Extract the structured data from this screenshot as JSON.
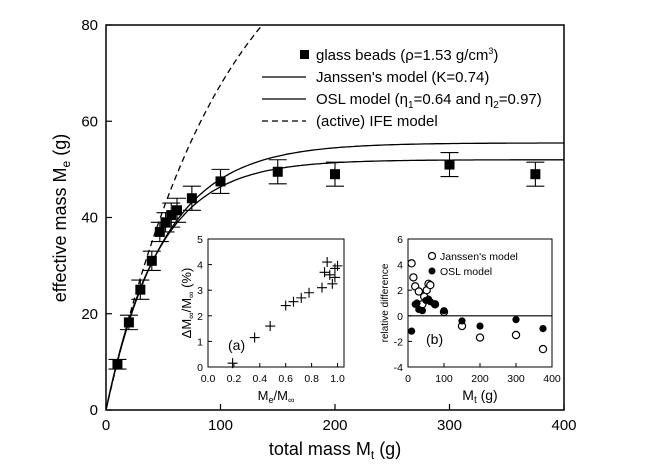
{
  "chart_data": [
    {
      "type": "scatter",
      "xlabel_main": "total mass M",
      "xlabel_sub": "t",
      "xlabel_unit": " (g)",
      "ylabel_main": "effective mass M",
      "ylabel_sub": "e",
      "ylabel_unit": " (g)",
      "xlim": [
        0,
        400
      ],
      "ylim": [
        0,
        80
      ],
      "xticks": [
        0,
        100,
        200,
        300,
        400
      ],
      "yticks": [
        0,
        20,
        40,
        60,
        80
      ],
      "grid": false,
      "legend_position": "top-right",
      "legend": [
        {
          "text": "glass beads (ρ=1.53 g/cm",
          "sup": "3",
          "tail": ")",
          "marker": "filled-square"
        },
        {
          "text": "Janssen's model (K=0.74)",
          "marker": "solid-line"
        },
        {
          "text": "OSL model (η",
          "sub1": "1",
          "mid": "=0.64 and η",
          "sub2": "2",
          "tail": "=0.97)",
          "marker": "solid-line"
        },
        {
          "text": "(active) IFE model",
          "marker": "dashed-line"
        }
      ],
      "series": [
        {
          "name": "glass beads",
          "marker": "filled-square",
          "points": [
            {
              "x": 10,
              "y": 9.5,
              "err": 1
            },
            {
              "x": 20,
              "y": 18.2,
              "err": 1.5
            },
            {
              "x": 30,
              "y": 25,
              "err": 2
            },
            {
              "x": 40,
              "y": 31,
              "err": 2
            },
            {
              "x": 47,
              "y": 37,
              "err": 2
            },
            {
              "x": 52,
              "y": 39,
              "err": 2
            },
            {
              "x": 57,
              "y": 40.5,
              "err": 2.5
            },
            {
              "x": 62,
              "y": 41.5,
              "err": 2.5
            },
            {
              "x": 75,
              "y": 44,
              "err": 2.5
            },
            {
              "x": 100,
              "y": 47.5,
              "err": 2.5
            },
            {
              "x": 150,
              "y": 49.5,
              "err": 2.5
            },
            {
              "x": 200,
              "y": 49,
              "err": 2.5
            },
            {
              "x": 300,
              "y": 51,
              "err": 2.5
            },
            {
              "x": 375,
              "y": 49,
              "err": 2.5
            }
          ]
        },
        {
          "name": "Janssen's model",
          "curve": "janssen",
          "Mmax": 52
        },
        {
          "name": "OSL model",
          "curve": "osl",
          "Mmax": 55.5
        },
        {
          "name": "(active) IFE model",
          "curve": "ife",
          "Mmax": 110
        }
      ]
    },
    {
      "type": "scatter",
      "panel_label": "(a)",
      "xlabel_main": "M",
      "xlabel_sub": "e",
      "xlabel_mid": "/M",
      "xlabel_sub2": "∞",
      "ylabel_main": "ΔM",
      "ylabel_sub": "∞",
      "ylabel_mid": "/M",
      "ylabel_sub2": "∞",
      "ylabel_unit": " (%)",
      "xlim": [
        0,
        1.05
      ],
      "ylim": [
        0,
        5
      ],
      "xticks": [
        "0.0",
        "0.2",
        "0.4",
        "0.6",
        "0.8",
        "1.0"
      ],
      "yticks": [
        "0",
        "1",
        "2",
        "3",
        "4",
        "5"
      ],
      "marker": "plus",
      "points": [
        {
          "x": 0.19,
          "y": 0.15
        },
        {
          "x": 0.36,
          "y": 1.15
        },
        {
          "x": 0.48,
          "y": 1.6
        },
        {
          "x": 0.6,
          "y": 2.4
        },
        {
          "x": 0.66,
          "y": 2.55
        },
        {
          "x": 0.72,
          "y": 2.7
        },
        {
          "x": 0.78,
          "y": 2.9
        },
        {
          "x": 0.88,
          "y": 3.1
        },
        {
          "x": 0.9,
          "y": 3.7
        },
        {
          "x": 0.92,
          "y": 4.1
        },
        {
          "x": 0.94,
          "y": 3.6
        },
        {
          "x": 0.96,
          "y": 3.25
        },
        {
          "x": 0.98,
          "y": 3.5
        },
        {
          "x": 0.98,
          "y": 3.85
        },
        {
          "x": 1.0,
          "y": 3.95
        }
      ]
    },
    {
      "type": "scatter",
      "panel_label": "(b)",
      "xlabel_main": "M",
      "xlabel_sub": "t",
      "xlabel_unit": " (g)",
      "ylabel": "relative difference",
      "xlim": [
        0,
        400
      ],
      "ylim": [
        -4,
        6
      ],
      "xticks": [
        "0",
        "100",
        "200",
        "300",
        "400"
      ],
      "yticks": [
        "-4",
        "-2",
        "0",
        "2",
        "4",
        "6"
      ],
      "reference_line": 0,
      "legend": [
        {
          "text": "Janssen's model",
          "marker": "open-circle"
        },
        {
          "text": "OSL model",
          "marker": "filled-circle"
        }
      ],
      "series": [
        {
          "name": "Janssen's model",
          "marker": "open-circle",
          "points": [
            {
              "x": 10,
              "y": 4.1
            },
            {
              "x": 15,
              "y": 3.0
            },
            {
              "x": 20,
              "y": 2.3
            },
            {
              "x": 30,
              "y": 1.9
            },
            {
              "x": 40,
              "y": 0.9
            },
            {
              "x": 45,
              "y": 1.5
            },
            {
              "x": 52,
              "y": 2.0
            },
            {
              "x": 57,
              "y": 2.5
            },
            {
              "x": 62,
              "y": 2.4
            },
            {
              "x": 75,
              "y": 0.9
            },
            {
              "x": 100,
              "y": 0.3
            },
            {
              "x": 150,
              "y": -0.8
            },
            {
              "x": 200,
              "y": -1.7
            },
            {
              "x": 300,
              "y": -1.5
            },
            {
              "x": 375,
              "y": -2.6
            }
          ]
        },
        {
          "name": "OSL model",
          "marker": "filled-circle",
          "points": [
            {
              "x": 10,
              "y": -1.2
            },
            {
              "x": 20,
              "y": 0.9
            },
            {
              "x": 25,
              "y": 1.0
            },
            {
              "x": 30,
              "y": 0.5
            },
            {
              "x": 40,
              "y": 0.4
            },
            {
              "x": 50,
              "y": 1.2
            },
            {
              "x": 57,
              "y": 1.3
            },
            {
              "x": 62,
              "y": 1.1
            },
            {
              "x": 75,
              "y": 0.9
            },
            {
              "x": 100,
              "y": 0.4
            },
            {
              "x": 150,
              "y": -0.4
            },
            {
              "x": 200,
              "y": -0.8
            },
            {
              "x": 300,
              "y": -0.3
            },
            {
              "x": 375,
              "y": -1.0
            }
          ]
        }
      ]
    }
  ]
}
